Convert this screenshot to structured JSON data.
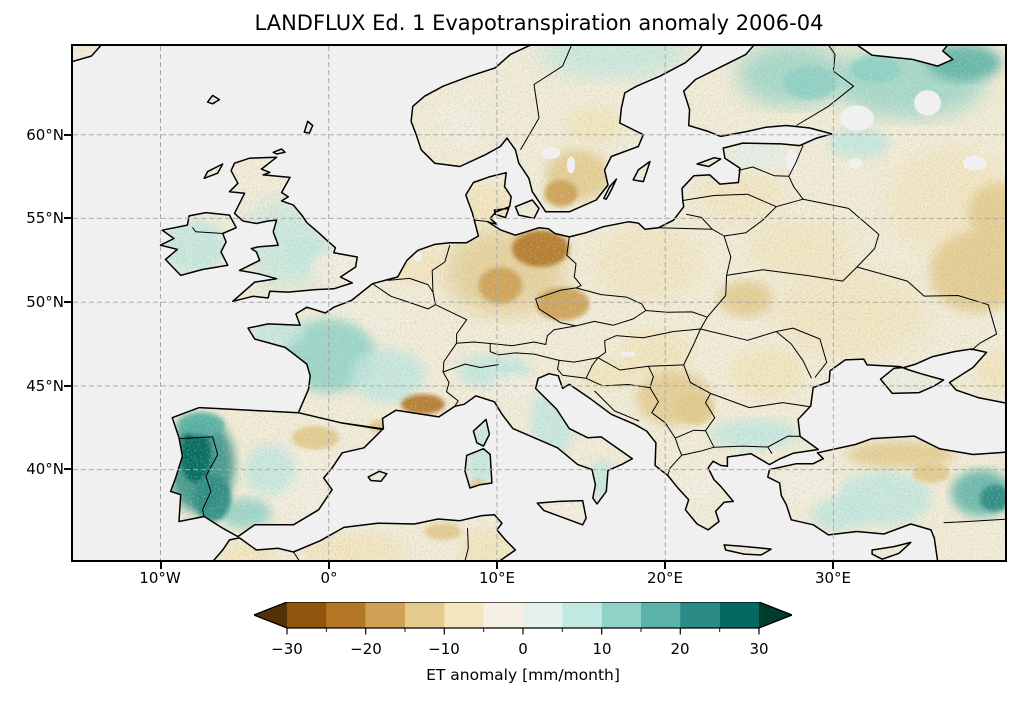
{
  "figure": {
    "title": "LANDFLUX Ed. 1 Evapotranspiration anomaly 2006-04"
  },
  "axes": {
    "lat_ticks": [
      "60°N",
      "55°N",
      "50°N",
      "45°N",
      "40°N"
    ],
    "lon_ticks": [
      "10°W",
      "0°",
      "10°E",
      "20°E",
      "30°E"
    ]
  },
  "colorbar": {
    "label": "ET anomaly [mm/month]",
    "ticks": [
      "−30",
      "−20",
      "−10",
      "0",
      "10",
      "20",
      "30"
    ],
    "tick_values": [
      -30,
      -20,
      -10,
      0,
      10,
      20,
      30
    ],
    "bin_edges": [
      -30,
      -25,
      -20,
      -15,
      -10,
      -5,
      0,
      5,
      10,
      15,
      20,
      25,
      30
    ],
    "colors": [
      "#90540D",
      "#B47726",
      "#CFA155",
      "#E4CA8C",
      "#F4E5BE",
      "#F5F0E3",
      "#E6F0EC",
      "#C2E8E2",
      "#8FD3C8",
      "#5AB2A8",
      "#2A8C84",
      "#056961"
    ],
    "under_color": "#543005",
    "over_color": "#003C30"
  },
  "map": {
    "ocean_color": "#f0f0f0",
    "land_base_color": "#F3EDDA",
    "coast_color": "#000000",
    "border_color": "#000000",
    "grid_color": "#aaaaaa"
  },
  "chart_data": {
    "type": "map",
    "title": "LANDFLUX Ed. 1 Evapotranspiration anomaly 2006-04",
    "dataset": "LANDFLUX Ed. 1",
    "variable": "Evapotranspiration anomaly",
    "units": "mm/month",
    "period": "2006-04",
    "projection": "PlateCarree",
    "extent": {
      "lon_min": -15.2,
      "lon_max": 40.2,
      "lat_min": 34.6,
      "lat_max": 65.3
    },
    "colorbar_range": [
      -30,
      30
    ],
    "bin_size": 5,
    "gridlines": {
      "lons": [
        -10,
        0,
        10,
        20,
        30
      ],
      "lats": [
        40,
        45,
        50,
        55,
        60
      ]
    },
    "anomaly_regions": [
      {
        "name": "west-iberia",
        "lon": -7.6,
        "lat": 40.3,
        "rlon": 2.0,
        "rlat": 2.9,
        "value": 20,
        "blur": "b5"
      },
      {
        "name": "north-portugal-core",
        "lon": -7.9,
        "lat": 40.9,
        "rlon": 0.9,
        "rlat": 1.7,
        "value": 25,
        "blur": "b2"
      },
      {
        "name": "galicia",
        "lon": -7.6,
        "lat": 42.7,
        "rlon": 1.4,
        "rlat": 0.7,
        "value": 18,
        "blur": "b2"
      },
      {
        "name": "sw-iberia-core",
        "lon": -6.9,
        "lat": 38.3,
        "rlon": 1.1,
        "rlat": 1.4,
        "value": 22,
        "blur": "b2"
      },
      {
        "name": "south-spain",
        "lon": -5.0,
        "lat": 37.4,
        "rlon": 1.6,
        "rlat": 0.9,
        "value": 10,
        "blur": "b5"
      },
      {
        "name": "east-spain-pale",
        "lon": -1.8,
        "lat": 39.3,
        "rlon": 2.4,
        "rlat": 2.4,
        "value": -3,
        "blur": "b9"
      },
      {
        "name": "ebro-valley",
        "lon": -0.8,
        "lat": 41.9,
        "rlon": 1.4,
        "rlat": 0.7,
        "value": -13,
        "blur": "b2"
      },
      {
        "name": "central-spain",
        "lon": -3.5,
        "lat": 40.0,
        "rlon": 1.5,
        "rlat": 1.5,
        "value": 6,
        "blur": "b5"
      },
      {
        "name": "languedoc-brown",
        "lon": 5.6,
        "lat": 43.9,
        "rlon": 1.3,
        "rlat": 0.6,
        "value": -22,
        "blur": "b2"
      },
      {
        "name": "roussillon-brown",
        "lon": 3.0,
        "lat": 42.6,
        "rlon": 0.6,
        "rlat": 0.4,
        "value": -15,
        "blur": "b2"
      },
      {
        "name": "west-france",
        "lon": 0.0,
        "lat": 46.8,
        "rlon": 2.8,
        "rlat": 2.2,
        "value": 10,
        "blur": "b5"
      },
      {
        "name": "central-france",
        "lon": 3.5,
        "lat": 45.6,
        "rlon": 2.2,
        "rlat": 1.6,
        "value": 9,
        "blur": "b5"
      },
      {
        "name": "brittany",
        "lon": -3.0,
        "lat": 48.2,
        "rlon": 1.6,
        "rlat": 0.9,
        "value": 6,
        "blur": "b5"
      },
      {
        "name": "north-france-pale",
        "lon": 2.5,
        "lat": 49.3,
        "rlon": 2.5,
        "rlat": 1.2,
        "value": -3,
        "blur": "b9"
      },
      {
        "name": "uk-mild",
        "lon": -2.5,
        "lat": 53.5,
        "rlon": 2.6,
        "rlat": 2.6,
        "value": 5,
        "blur": "b9"
      },
      {
        "name": "central-england-teal",
        "lon": -1.2,
        "lat": 52.8,
        "rlon": 1.2,
        "rlat": 0.9,
        "value": 9,
        "blur": "b5"
      },
      {
        "name": "se-england",
        "lon": 0.2,
        "lat": 52.2,
        "rlon": 1.3,
        "rlat": 0.9,
        "value": -4,
        "blur": "b5"
      },
      {
        "name": "ireland",
        "lon": -8.0,
        "lat": 53.3,
        "rlon": 1.9,
        "rlat": 1.6,
        "value": 6,
        "blur": "b5"
      },
      {
        "name": "benelux-tan",
        "lon": 5.3,
        "lat": 52.2,
        "rlon": 1.6,
        "rlat": 1.1,
        "value": -7,
        "blur": "b5"
      },
      {
        "name": "germany",
        "lon": 10.5,
        "lat": 51.8,
        "rlon": 3.6,
        "rlat": 2.6,
        "value": -13,
        "blur": "b9"
      },
      {
        "name": "ne-germany-core",
        "lon": 12.6,
        "lat": 53.2,
        "rlon": 1.7,
        "rlat": 1.1,
        "value": -22,
        "blur": "b2"
      },
      {
        "name": "central-germany-core",
        "lon": 10.2,
        "lat": 51.0,
        "rlon": 1.3,
        "rlat": 1.1,
        "value": -19,
        "blur": "b2"
      },
      {
        "name": "czech-core",
        "lon": 13.9,
        "lat": 49.9,
        "rlon": 1.6,
        "rlat": 1.0,
        "value": -20,
        "blur": "b2"
      },
      {
        "name": "poland",
        "lon": 19.0,
        "lat": 52.3,
        "rlon": 3.2,
        "rlat": 2.2,
        "value": -9,
        "blur": "b9"
      },
      {
        "name": "denmark",
        "lon": 9.3,
        "lat": 55.8,
        "rlon": 1.6,
        "rlat": 1.3,
        "value": -8,
        "blur": "b5"
      },
      {
        "name": "south-sweden",
        "lon": 14.8,
        "lat": 57.6,
        "rlon": 1.9,
        "rlat": 1.5,
        "value": -14,
        "blur": "b5"
      },
      {
        "name": "south-sweden-core",
        "lon": 13.8,
        "lat": 56.5,
        "rlon": 1.0,
        "rlat": 0.8,
        "value": -17,
        "blur": "b2"
      },
      {
        "name": "mid-sweden",
        "lon": 15.8,
        "lat": 60.6,
        "rlon": 1.6,
        "rlat": 1.1,
        "value": -6,
        "blur": "b5"
      },
      {
        "name": "south-norway",
        "lon": 8.0,
        "lat": 60.8,
        "rlon": 1.8,
        "rlat": 1.6,
        "value": -3,
        "blur": "b9"
      },
      {
        "name": "north-scandinavia",
        "lon": 17.0,
        "lat": 64.9,
        "rlon": 4.5,
        "rlat": 1.6,
        "value": 8,
        "blur": "b9"
      },
      {
        "name": "finland",
        "lon": 27.5,
        "lat": 63.6,
        "rlon": 3.2,
        "rlat": 1.9,
        "value": 10,
        "blur": "b9"
      },
      {
        "name": "finland-core",
        "lon": 28.6,
        "lat": 63.1,
        "rlon": 1.6,
        "rlat": 1.0,
        "value": 14,
        "blur": "b2"
      },
      {
        "name": "nw-russia",
        "lon": 34.5,
        "lat": 63.2,
        "rlon": 4.5,
        "rlat": 2.2,
        "value": 10,
        "blur": "b9"
      },
      {
        "name": "nw-russia-core",
        "lon": 37.8,
        "lat": 64.3,
        "rlon": 2.2,
        "rlat": 1.1,
        "value": 15,
        "blur": "b5"
      },
      {
        "name": "karelia-core",
        "lon": 32.5,
        "lat": 63.9,
        "rlon": 1.5,
        "rlat": 0.8,
        "value": 13,
        "blur": "b2"
      },
      {
        "name": "baltics-tan",
        "lon": 24.5,
        "lat": 56.3,
        "rlon": 2.6,
        "rlat": 1.6,
        "value": -8,
        "blur": "b9"
      },
      {
        "name": "estonia-mint",
        "lon": 25.5,
        "lat": 58.8,
        "rlon": 1.6,
        "rlat": 0.9,
        "value": 3,
        "blur": "b5"
      },
      {
        "name": "st-petersburg-mint",
        "lon": 31.5,
        "lat": 59.5,
        "rlon": 1.8,
        "rlat": 0.9,
        "value": 5,
        "blur": "b5"
      },
      {
        "name": "belarus",
        "lon": 28.0,
        "lat": 53.2,
        "rlon": 3.2,
        "rlat": 1.7,
        "value": -10,
        "blur": "b9"
      },
      {
        "name": "west-ukraine-brown",
        "lon": 24.8,
        "lat": 50.2,
        "rlon": 1.6,
        "rlat": 1.1,
        "value": -12,
        "blur": "b5"
      },
      {
        "name": "ukraine",
        "lon": 31.0,
        "lat": 49.3,
        "rlon": 4.5,
        "rlat": 2.6,
        "value": -8,
        "blur": "b9"
      },
      {
        "name": "russia-east-tan",
        "lon": 37.0,
        "lat": 56.0,
        "rlon": 3.8,
        "rlat": 3.2,
        "value": -9,
        "blur": "b9"
      },
      {
        "name": "russia-se-brown",
        "lon": 38.5,
        "lat": 51.8,
        "rlon": 2.8,
        "rlat": 2.4,
        "value": -14,
        "blur": "b5"
      },
      {
        "name": "russia-volga-brown",
        "lon": 39.8,
        "lat": 55.3,
        "rlon": 1.8,
        "rlat": 1.8,
        "value": -13,
        "blur": "b5"
      },
      {
        "name": "hungary-tan",
        "lon": 19.5,
        "lat": 47.0,
        "rlon": 2.2,
        "rlat": 1.4,
        "value": -8,
        "blur": "b5"
      },
      {
        "name": "romania",
        "lon": 26.0,
        "lat": 45.8,
        "rlon": 2.2,
        "rlat": 1.5,
        "value": -10,
        "blur": "b5"
      },
      {
        "name": "balkans-brown",
        "lon": 20.5,
        "lat": 44.3,
        "rlon": 2.2,
        "rlat": 1.6,
        "value": -11,
        "blur": "b5"
      },
      {
        "name": "serbia-core",
        "lon": 21.8,
        "lat": 43.6,
        "rlon": 1.1,
        "rlat": 0.9,
        "value": -15,
        "blur": "b2"
      },
      {
        "name": "bulgaria-greece-teal",
        "lon": 25.3,
        "lat": 42.1,
        "rlon": 2.6,
        "rlat": 0.9,
        "value": 7,
        "blur": "b5"
      },
      {
        "name": "alps-south-teal",
        "lon": 9.8,
        "lat": 45.9,
        "rlon": 2.2,
        "rlat": 1.0,
        "value": 9,
        "blur": "b5"
      },
      {
        "name": "po-valley-pale",
        "lon": 11.0,
        "lat": 45.0,
        "rlon": 1.6,
        "rlat": 0.7,
        "value": -3,
        "blur": "b5"
      },
      {
        "name": "apennines-teal",
        "lon": 13.3,
        "lat": 42.9,
        "rlon": 1.3,
        "rlat": 2.1,
        "value": 9,
        "blur": "b5"
      },
      {
        "name": "calabria-teal",
        "lon": 16.3,
        "lat": 39.4,
        "rlon": 0.8,
        "rlat": 1.2,
        "value": 7,
        "blur": "b5"
      },
      {
        "name": "corsica-sardinia-teal",
        "lon": 9.1,
        "lat": 40.8,
        "rlon": 0.9,
        "rlat": 1.9,
        "value": 9,
        "blur": "b5"
      },
      {
        "name": "sardinia-south-brown",
        "lon": 8.85,
        "lat": 39.0,
        "rlon": 0.5,
        "rlat": 0.45,
        "value": -14,
        "blur": "b2"
      },
      {
        "name": "croatia-tan",
        "lon": 16.8,
        "lat": 45.6,
        "rlon": 1.6,
        "rlat": 0.9,
        "value": -8,
        "blur": "b5"
      },
      {
        "name": "greece-pale",
        "lon": 22.0,
        "lat": 39.3,
        "rlon": 1.6,
        "rlat": 1.6,
        "value": -2,
        "blur": "b9"
      },
      {
        "name": "turkey-central-teal",
        "lon": 33.0,
        "lat": 38.3,
        "rlon": 2.8,
        "rlat": 1.6,
        "value": 9,
        "blur": "b5"
      },
      {
        "name": "turkey-east-teal",
        "lon": 38.8,
        "lat": 38.6,
        "rlon": 1.8,
        "rlat": 1.4,
        "value": 16,
        "blur": "b5"
      },
      {
        "name": "turkey-east-core",
        "lon": 39.6,
        "lat": 38.3,
        "rlon": 0.9,
        "rlat": 0.8,
        "value": 22,
        "blur": "b2"
      },
      {
        "name": "turkey-north-brown",
        "lon": 34.0,
        "lat": 40.9,
        "rlon": 3.2,
        "rlat": 0.8,
        "value": -11,
        "blur": "b5"
      },
      {
        "name": "turkey-brown-core",
        "lon": 35.8,
        "lat": 39.8,
        "rlon": 1.1,
        "rlat": 0.6,
        "value": -15,
        "blur": "b2"
      },
      {
        "name": "turkey-west-tan",
        "lon": 28.6,
        "lat": 39.3,
        "rlon": 1.7,
        "rlat": 1.3,
        "value": -5,
        "blur": "b5"
      },
      {
        "name": "anatolia-sw-teal",
        "lon": 30.3,
        "lat": 37.3,
        "rlon": 1.6,
        "rlat": 1.0,
        "value": 8,
        "blur": "b5"
      },
      {
        "name": "crimea-mint",
        "lon": 34.2,
        "lat": 45.3,
        "rlon": 1.0,
        "rlat": 0.6,
        "value": 4,
        "blur": "b5"
      },
      {
        "name": "caucasus-tan",
        "lon": 39.8,
        "lat": 45.8,
        "rlon": 1.3,
        "rlat": 1.3,
        "value": -6,
        "blur": "b5"
      },
      {
        "name": "morocco-tan",
        "lon": -4.8,
        "lat": 34.8,
        "rlon": 1.7,
        "rlat": 0.9,
        "value": -7,
        "blur": "b5"
      },
      {
        "name": "algeria-tan",
        "lon": 1.5,
        "lat": 35.2,
        "rlon": 3.2,
        "rlat": 0.9,
        "value": -7,
        "blur": "b5"
      },
      {
        "name": "ne-algeria-brown",
        "lon": 6.8,
        "lat": 36.3,
        "rlon": 1.1,
        "rlat": 0.5,
        "value": -12,
        "blur": "b2"
      },
      {
        "name": "tunisia-tan",
        "lon": 9.3,
        "lat": 35.3,
        "rlon": 1.6,
        "rlat": 1.1,
        "value": -10,
        "blur": "b5"
      },
      {
        "name": "sicily-tan",
        "lon": 14.2,
        "lat": 37.5,
        "rlon": 1.3,
        "rlat": 0.6,
        "value": -5,
        "blur": "b5"
      }
    ]
  }
}
